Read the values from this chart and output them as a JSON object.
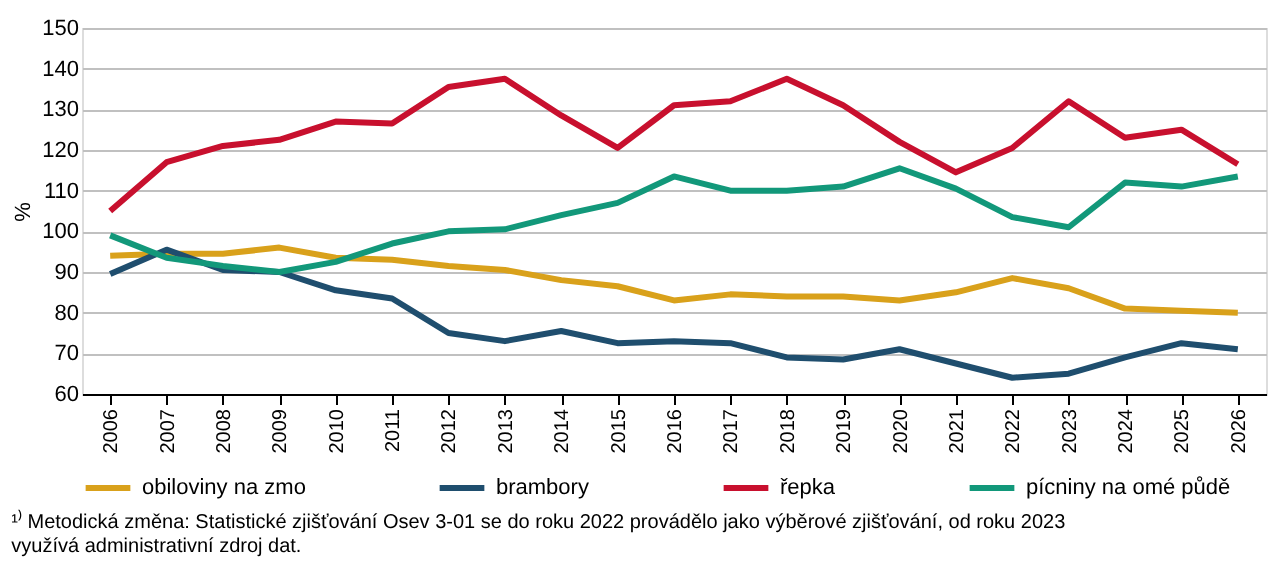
{
  "chart_data": {
    "type": "line",
    "ylabel": "%",
    "categories": [
      "2006",
      "2007",
      "2008",
      "2009",
      "2010",
      "2011",
      "2012",
      "2013",
      "2014",
      "2015",
      "2016",
      "2017",
      "2018",
      "2019",
      "2020",
      "2021",
      "2022",
      "2023",
      "2024",
      "2025",
      "2026"
    ],
    "series": [
      {
        "name": "obiloviny na zmo",
        "color": "#d9a11b",
        "values": [
          94,
          94.5,
          94.5,
          96,
          93.5,
          93,
          91.5,
          90.5,
          88,
          86.5,
          83,
          84.5,
          84,
          84,
          83,
          85,
          88.5,
          86,
          81,
          80.5,
          80
        ]
      },
      {
        "name": "brambory",
        "color": "#1f4e6e",
        "values": [
          89.5,
          95.5,
          90.5,
          90,
          85.5,
          83.5,
          75,
          73,
          75.5,
          72.5,
          73,
          72.5,
          69,
          68.5,
          71,
          67.5,
          64,
          65,
          69,
          72.5,
          71
        ]
      },
      {
        "name": "řepka",
        "color": "#c8102e",
        "values": [
          105,
          117,
          121,
          122.5,
          127,
          126.5,
          135.5,
          137.5,
          128.5,
          120.5,
          131,
          132,
          137.5,
          131,
          122,
          114.5,
          120.5,
          132,
          123,
          125,
          116.5
        ]
      },
      {
        "name": "pícniny na omé půdě",
        "color": "#12987a",
        "values": [
          99,
          93.5,
          91.5,
          90,
          92.5,
          97,
          100,
          100.5,
          104,
          107,
          113.5,
          110,
          110,
          111,
          115.5,
          110.5,
          103.5,
          101,
          112,
          111,
          113.5
        ]
      }
    ],
    "ylim": [
      60,
      150
    ],
    "yticks": [
      60,
      70,
      80,
      90,
      100,
      110,
      120,
      130,
      140,
      150
    ],
    "grid": "y",
    "legend": "bottom",
    "line_style": "solid",
    "annotations": [
      "¹⁾ Metodická změna: Statistické zjišťování Osev 3-01 se do roku 2022 provádělo jako výběrové zjišťování, od roku 2023 využívá administrativní zdroj dat."
    ]
  }
}
